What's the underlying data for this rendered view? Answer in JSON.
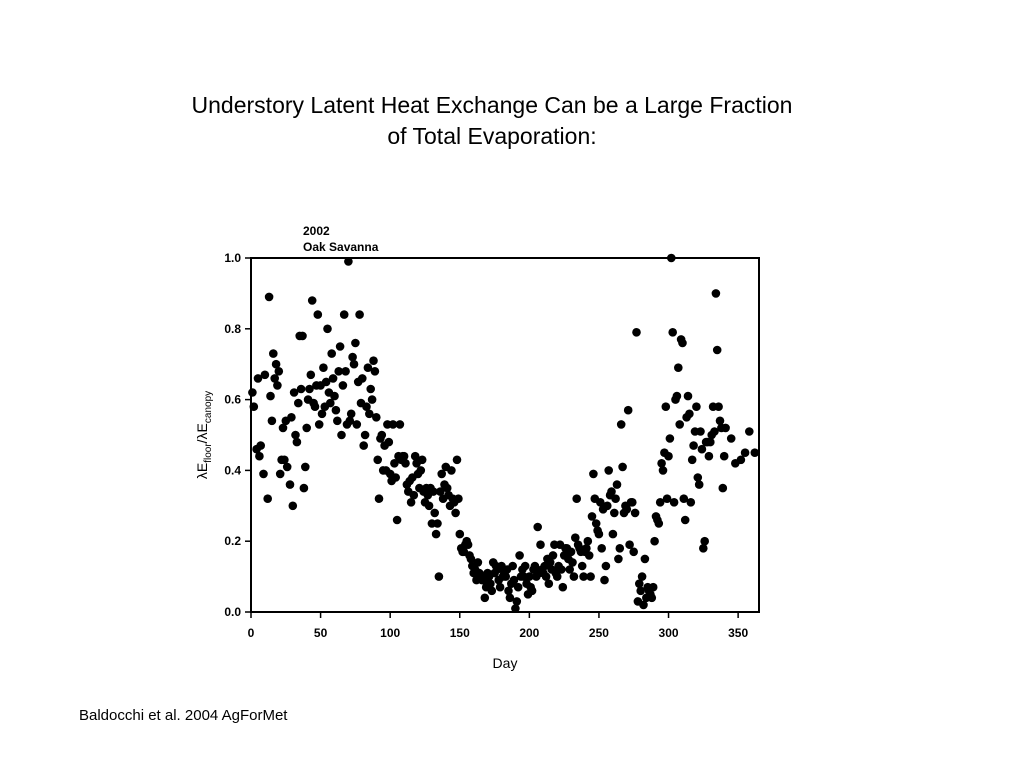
{
  "slide": {
    "title_line1": "Understory Latent Heat Exchange Can be a Large Fraction",
    "title_line2": "of Total Evaporation:",
    "citation": "Baldocchi et al. 2004 AgForMet"
  },
  "chart_data": {
    "type": "scatter",
    "annotation": [
      "2002",
      "Oak Savanna"
    ],
    "xlabel": "Day",
    "ylabel": {
      "lambda": "λ",
      "E": "E",
      "floor_sub": "floor",
      "slash": "/",
      "canopy_sub": "canopy"
    },
    "xlim": [
      0,
      365
    ],
    "ylim": [
      0,
      1.0
    ],
    "xticks": [
      0,
      50,
      100,
      150,
      200,
      250,
      300,
      350
    ],
    "yticks": [
      "0.0",
      "0.2",
      "0.4",
      "0.6",
      "0.8",
      "1.0"
    ],
    "marker_color": "#000000",
    "points": [
      [
        1,
        0.62
      ],
      [
        2,
        0.58
      ],
      [
        4,
        0.46
      ],
      [
        5,
        0.66
      ],
      [
        6,
        0.44
      ],
      [
        7,
        0.47
      ],
      [
        9,
        0.39
      ],
      [
        10,
        0.67
      ],
      [
        12,
        0.32
      ],
      [
        13,
        0.89
      ],
      [
        14,
        0.61
      ],
      [
        15,
        0.54
      ],
      [
        16,
        0.73
      ],
      [
        17,
        0.66
      ],
      [
        18,
        0.7
      ],
      [
        19,
        0.64
      ],
      [
        20,
        0.68
      ],
      [
        21,
        0.39
      ],
      [
        22,
        0.43
      ],
      [
        23,
        0.52
      ],
      [
        24,
        0.43
      ],
      [
        25,
        0.54
      ],
      [
        26,
        0.41
      ],
      [
        28,
        0.36
      ],
      [
        29,
        0.55
      ],
      [
        30,
        0.3
      ],
      [
        31,
        0.62
      ],
      [
        32,
        0.5
      ],
      [
        33,
        0.48
      ],
      [
        34,
        0.59
      ],
      [
        35,
        0.78
      ],
      [
        36,
        0.63
      ],
      [
        37,
        0.78
      ],
      [
        38,
        0.35
      ],
      [
        39,
        0.41
      ],
      [
        40,
        0.52
      ],
      [
        41,
        0.6
      ],
      [
        42,
        0.63
      ],
      [
        43,
        0.67
      ],
      [
        44,
        0.88
      ],
      [
        45,
        0.59
      ],
      [
        46,
        0.58
      ],
      [
        47,
        0.64
      ],
      [
        48,
        0.84
      ],
      [
        49,
        0.53
      ],
      [
        50,
        0.64
      ],
      [
        51,
        0.56
      ],
      [
        52,
        0.69
      ],
      [
        53,
        0.58
      ],
      [
        54,
        0.65
      ],
      [
        55,
        0.8
      ],
      [
        56,
        0.62
      ],
      [
        57,
        0.59
      ],
      [
        58,
        0.73
      ],
      [
        59,
        0.66
      ],
      [
        60,
        0.61
      ],
      [
        61,
        0.57
      ],
      [
        62,
        0.54
      ],
      [
        63,
        0.68
      ],
      [
        64,
        0.75
      ],
      [
        65,
        0.5
      ],
      [
        66,
        0.64
      ],
      [
        67,
        0.84
      ],
      [
        68,
        0.68
      ],
      [
        69,
        0.53
      ],
      [
        70,
        0.99
      ],
      [
        71,
        0.54
      ],
      [
        72,
        0.56
      ],
      [
        73,
        0.72
      ],
      [
        74,
        0.7
      ],
      [
        75,
        0.76
      ],
      [
        76,
        0.53
      ],
      [
        77,
        0.65
      ],
      [
        78,
        0.84
      ],
      [
        79,
        0.59
      ],
      [
        80,
        0.66
      ],
      [
        81,
        0.47
      ],
      [
        82,
        0.5
      ],
      [
        83,
        0.58
      ],
      [
        84,
        0.69
      ],
      [
        85,
        0.56
      ],
      [
        86,
        0.63
      ],
      [
        87,
        0.6
      ],
      [
        88,
        0.71
      ],
      [
        89,
        0.68
      ],
      [
        90,
        0.55
      ],
      [
        91,
        0.43
      ],
      [
        92,
        0.32
      ],
      [
        93,
        0.49
      ],
      [
        94,
        0.5
      ],
      [
        95,
        0.4
      ],
      [
        96,
        0.47
      ],
      [
        97,
        0.4
      ],
      [
        98,
        0.53
      ],
      [
        99,
        0.48
      ],
      [
        100,
        0.39
      ],
      [
        101,
        0.37
      ],
      [
        102,
        0.53
      ],
      [
        103,
        0.42
      ],
      [
        104,
        0.38
      ],
      [
        105,
        0.26
      ],
      [
        106,
        0.44
      ],
      [
        107,
        0.53
      ],
      [
        108,
        0.43
      ],
      [
        109,
        0.44
      ],
      [
        110,
        0.44
      ],
      [
        111,
        0.42
      ],
      [
        112,
        0.36
      ],
      [
        113,
        0.34
      ],
      [
        114,
        0.37
      ],
      [
        115,
        0.31
      ],
      [
        116,
        0.38
      ],
      [
        117,
        0.33
      ],
      [
        118,
        0.44
      ],
      [
        119,
        0.42
      ],
      [
        120,
        0.39
      ],
      [
        121,
        0.35
      ],
      [
        122,
        0.4
      ],
      [
        123,
        0.43
      ],
      [
        124,
        0.34
      ],
      [
        125,
        0.31
      ],
      [
        126,
        0.35
      ],
      [
        127,
        0.33
      ],
      [
        128,
        0.3
      ],
      [
        129,
        0.35
      ],
      [
        130,
        0.25
      ],
      [
        131,
        0.34
      ],
      [
        132,
        0.28
      ],
      [
        133,
        0.22
      ],
      [
        134,
        0.25
      ],
      [
        135,
        0.1
      ],
      [
        136,
        0.34
      ],
      [
        137,
        0.39
      ],
      [
        138,
        0.32
      ],
      [
        139,
        0.36
      ],
      [
        140,
        0.41
      ],
      [
        141,
        0.35
      ],
      [
        142,
        0.33
      ],
      [
        143,
        0.3
      ],
      [
        144,
        0.4
      ],
      [
        145,
        0.32
      ],
      [
        146,
        0.31
      ],
      [
        147,
        0.28
      ],
      [
        148,
        0.43
      ],
      [
        149,
        0.32
      ],
      [
        150,
        0.22
      ],
      [
        151,
        0.18
      ],
      [
        152,
        0.17
      ],
      [
        153,
        0.17
      ],
      [
        154,
        0.19
      ],
      [
        155,
        0.2
      ],
      [
        156,
        0.19
      ],
      [
        157,
        0.16
      ],
      [
        158,
        0.15
      ],
      [
        159,
        0.13
      ],
      [
        160,
        0.11
      ],
      [
        161,
        0.12
      ],
      [
        162,
        0.09
      ],
      [
        163,
        0.14
      ],
      [
        164,
        0.11
      ],
      [
        165,
        0.1
      ],
      [
        166,
        0.09
      ],
      [
        167,
        0.09
      ],
      [
        168,
        0.04
      ],
      [
        169,
        0.07
      ],
      [
        170,
        0.11
      ],
      [
        171,
        0.1
      ],
      [
        172,
        0.08
      ],
      [
        173,
        0.06
      ],
      [
        174,
        0.14
      ],
      [
        175,
        0.11
      ],
      [
        176,
        0.13
      ],
      [
        177,
        0.12
      ],
      [
        178,
        0.09
      ],
      [
        179,
        0.07
      ],
      [
        180,
        0.13
      ],
      [
        181,
        0.1
      ],
      [
        182,
        0.11
      ],
      [
        183,
        0.1
      ],
      [
        184,
        0.12
      ],
      [
        185,
        0.06
      ],
      [
        186,
        0.04
      ],
      [
        187,
        0.08
      ],
      [
        188,
        0.13
      ],
      [
        189,
        0.09
      ],
      [
        190,
        0.01
      ],
      [
        191,
        0.03
      ],
      [
        192,
        0.07
      ],
      [
        193,
        0.16
      ],
      [
        194,
        0.1
      ],
      [
        195,
        0.12
      ],
      [
        196,
        0.1
      ],
      [
        197,
        0.13
      ],
      [
        198,
        0.08
      ],
      [
        199,
        0.05
      ],
      [
        200,
        0.1
      ],
      [
        201,
        0.07
      ],
      [
        202,
        0.06
      ],
      [
        203,
        0.12
      ],
      [
        204,
        0.13
      ],
      [
        205,
        0.1
      ],
      [
        206,
        0.24
      ],
      [
        207,
        0.11
      ],
      [
        208,
        0.19
      ],
      [
        209,
        0.12
      ],
      [
        210,
        0.11
      ],
      [
        211,
        0.13
      ],
      [
        212,
        0.1
      ],
      [
        213,
        0.15
      ],
      [
        214,
        0.08
      ],
      [
        215,
        0.14
      ],
      [
        216,
        0.12
      ],
      [
        217,
        0.16
      ],
      [
        218,
        0.19
      ],
      [
        219,
        0.11
      ],
      [
        220,
        0.1
      ],
      [
        221,
        0.13
      ],
      [
        222,
        0.19
      ],
      [
        223,
        0.12
      ],
      [
        224,
        0.07
      ],
      [
        225,
        0.16
      ],
      [
        226,
        0.18
      ],
      [
        227,
        0.18
      ],
      [
        228,
        0.15
      ],
      [
        229,
        0.12
      ],
      [
        230,
        0.17
      ],
      [
        231,
        0.14
      ],
      [
        232,
        0.1
      ],
      [
        233,
        0.21
      ],
      [
        234,
        0.32
      ],
      [
        235,
        0.19
      ],
      [
        236,
        0.18
      ],
      [
        237,
        0.17
      ],
      [
        238,
        0.13
      ],
      [
        239,
        0.1
      ],
      [
        240,
        0.17
      ],
      [
        241,
        0.18
      ],
      [
        242,
        0.2
      ],
      [
        243,
        0.16
      ],
      [
        244,
        0.1
      ],
      [
        245,
        0.27
      ],
      [
        246,
        0.39
      ],
      [
        247,
        0.32
      ],
      [
        248,
        0.25
      ],
      [
        249,
        0.23
      ],
      [
        250,
        0.22
      ],
      [
        251,
        0.31
      ],
      [
        252,
        0.18
      ],
      [
        253,
        0.29
      ],
      [
        254,
        0.09
      ],
      [
        255,
        0.13
      ],
      [
        256,
        0.3
      ],
      [
        257,
        0.4
      ],
      [
        258,
        0.33
      ],
      [
        259,
        0.34
      ],
      [
        260,
        0.22
      ],
      [
        261,
        0.28
      ],
      [
        262,
        0.32
      ],
      [
        263,
        0.36
      ],
      [
        264,
        0.15
      ],
      [
        265,
        0.18
      ],
      [
        266,
        0.53
      ],
      [
        267,
        0.41
      ],
      [
        268,
        0.28
      ],
      [
        269,
        0.3
      ],
      [
        270,
        0.29
      ],
      [
        271,
        0.57
      ],
      [
        272,
        0.19
      ],
      [
        273,
        0.31
      ],
      [
        274,
        0.31
      ],
      [
        275,
        0.17
      ],
      [
        276,
        0.28
      ],
      [
        277,
        0.79
      ],
      [
        278,
        0.03
      ],
      [
        279,
        0.08
      ],
      [
        280,
        0.06
      ],
      [
        281,
        0.1
      ],
      [
        282,
        0.02
      ],
      [
        283,
        0.15
      ],
      [
        284,
        0.04
      ],
      [
        285,
        0.07
      ],
      [
        286,
        0.06
      ],
      [
        287,
        0.05
      ],
      [
        288,
        0.04
      ],
      [
        289,
        0.07
      ],
      [
        290,
        0.2
      ],
      [
        291,
        0.27
      ],
      [
        292,
        0.26
      ],
      [
        293,
        0.25
      ],
      [
        294,
        0.31
      ],
      [
        295,
        0.42
      ],
      [
        296,
        0.4
      ],
      [
        297,
        0.45
      ],
      [
        298,
        0.58
      ],
      [
        299,
        0.32
      ],
      [
        300,
        0.44
      ],
      [
        301,
        0.49
      ],
      [
        302,
        1.0
      ],
      [
        303,
        0.79
      ],
      [
        304,
        0.31
      ],
      [
        305,
        0.6
      ],
      [
        306,
        0.61
      ],
      [
        307,
        0.69
      ],
      [
        308,
        0.53
      ],
      [
        309,
        0.77
      ],
      [
        310,
        0.76
      ],
      [
        311,
        0.32
      ],
      [
        312,
        0.26
      ],
      [
        313,
        0.55
      ],
      [
        314,
        0.61
      ],
      [
        315,
        0.56
      ],
      [
        316,
        0.31
      ],
      [
        317,
        0.43
      ],
      [
        318,
        0.47
      ],
      [
        319,
        0.51
      ],
      [
        320,
        0.58
      ],
      [
        321,
        0.38
      ],
      [
        322,
        0.36
      ],
      [
        323,
        0.51
      ],
      [
        324,
        0.46
      ],
      [
        325,
        0.18
      ],
      [
        326,
        0.2
      ],
      [
        327,
        0.48
      ],
      [
        328,
        0.48
      ],
      [
        329,
        0.44
      ],
      [
        330,
        0.48
      ],
      [
        331,
        0.5
      ],
      [
        332,
        0.58
      ],
      [
        333,
        0.51
      ],
      [
        334,
        0.9
      ],
      [
        335,
        0.74
      ],
      [
        336,
        0.58
      ],
      [
        337,
        0.54
      ],
      [
        338,
        0.52
      ],
      [
        339,
        0.35
      ],
      [
        340,
        0.44
      ],
      [
        341,
        0.52
      ],
      [
        345,
        0.49
      ],
      [
        348,
        0.42
      ],
      [
        352,
        0.43
      ],
      [
        355,
        0.45
      ],
      [
        358,
        0.51
      ],
      [
        362,
        0.45
      ]
    ]
  }
}
